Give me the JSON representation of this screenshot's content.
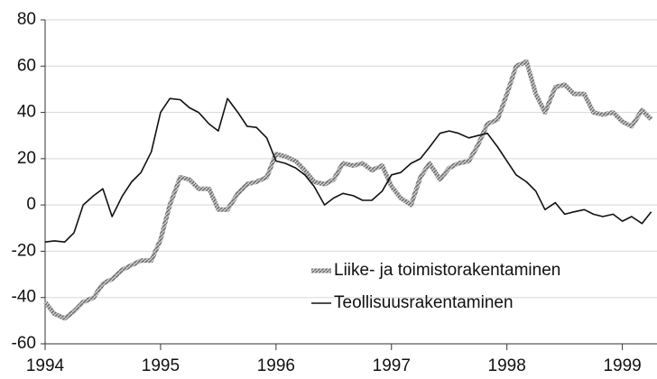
{
  "chart_data": {
    "type": "line",
    "x": [
      1994,
      1994.08,
      1994.17,
      1994.25,
      1994.33,
      1994.42,
      1994.5,
      1994.58,
      1994.67,
      1994.75,
      1994.83,
      1994.92,
      1995,
      1995.08,
      1995.17,
      1995.25,
      1995.33,
      1995.42,
      1995.5,
      1995.58,
      1995.67,
      1995.75,
      1995.83,
      1995.92,
      1996,
      1996.08,
      1996.17,
      1996.25,
      1996.33,
      1996.42,
      1996.5,
      1996.58,
      1996.67,
      1996.75,
      1996.83,
      1996.92,
      1997,
      1997.08,
      1997.17,
      1997.25,
      1997.33,
      1997.42,
      1997.5,
      1997.58,
      1997.67,
      1997.75,
      1997.83,
      1997.92,
      1998,
      1998.08,
      1998.17,
      1998.25,
      1998.33,
      1998.42,
      1998.5,
      1998.58,
      1998.67,
      1998.75,
      1998.83,
      1998.92,
      1999,
      1999.08,
      1999.17,
      1999.25
    ],
    "series": [
      {
        "name": "Liike- ja toimistorakentaminen",
        "color": "#9a9a9a",
        "values": [
          -42,
          -47,
          -49,
          -46,
          -42,
          -40,
          -34,
          -32,
          -28,
          -26,
          -24,
          -24,
          -15,
          0,
          12,
          11,
          7,
          7,
          -2,
          -2,
          5,
          9,
          10,
          12,
          22,
          21,
          19,
          15,
          10,
          9,
          11,
          18,
          17,
          18,
          15,
          17,
          8,
          3,
          0,
          12,
          18,
          11,
          16,
          18,
          19,
          26,
          35,
          37,
          48,
          60,
          62,
          48,
          40,
          51,
          52,
          48,
          48,
          40,
          39,
          40,
          36,
          34,
          41,
          37
        ]
      },
      {
        "name": "Teollisuusrakentaminen",
        "color": "#111111",
        "values": [
          -16,
          -15.5,
          -16,
          -12,
          0,
          4,
          7,
          -5,
          4,
          10,
          14,
          23,
          40,
          46,
          45.5,
          42,
          40,
          35,
          32,
          46,
          40,
          34,
          33.5,
          29,
          19,
          18,
          16,
          13,
          8,
          0,
          3,
          5,
          4,
          2,
          2,
          6,
          13,
          14,
          18,
          20,
          25,
          31,
          32,
          31,
          29,
          30,
          31,
          25,
          19,
          13,
          10,
          6,
          -2,
          1,
          -4,
          -3,
          -2,
          -4,
          -5,
          -4,
          -7,
          -5,
          -8,
          -3
        ]
      }
    ],
    "xlim": [
      1994,
      1999.3
    ],
    "xticks": [
      1994,
      1995,
      1996,
      1997,
      1998,
      1999
    ],
    "ylim": [
      -60,
      80
    ],
    "yticks": [
      -60,
      -40,
      -20,
      0,
      20,
      40,
      60,
      80
    ],
    "grid": true,
    "legend": "bottom-center"
  }
}
